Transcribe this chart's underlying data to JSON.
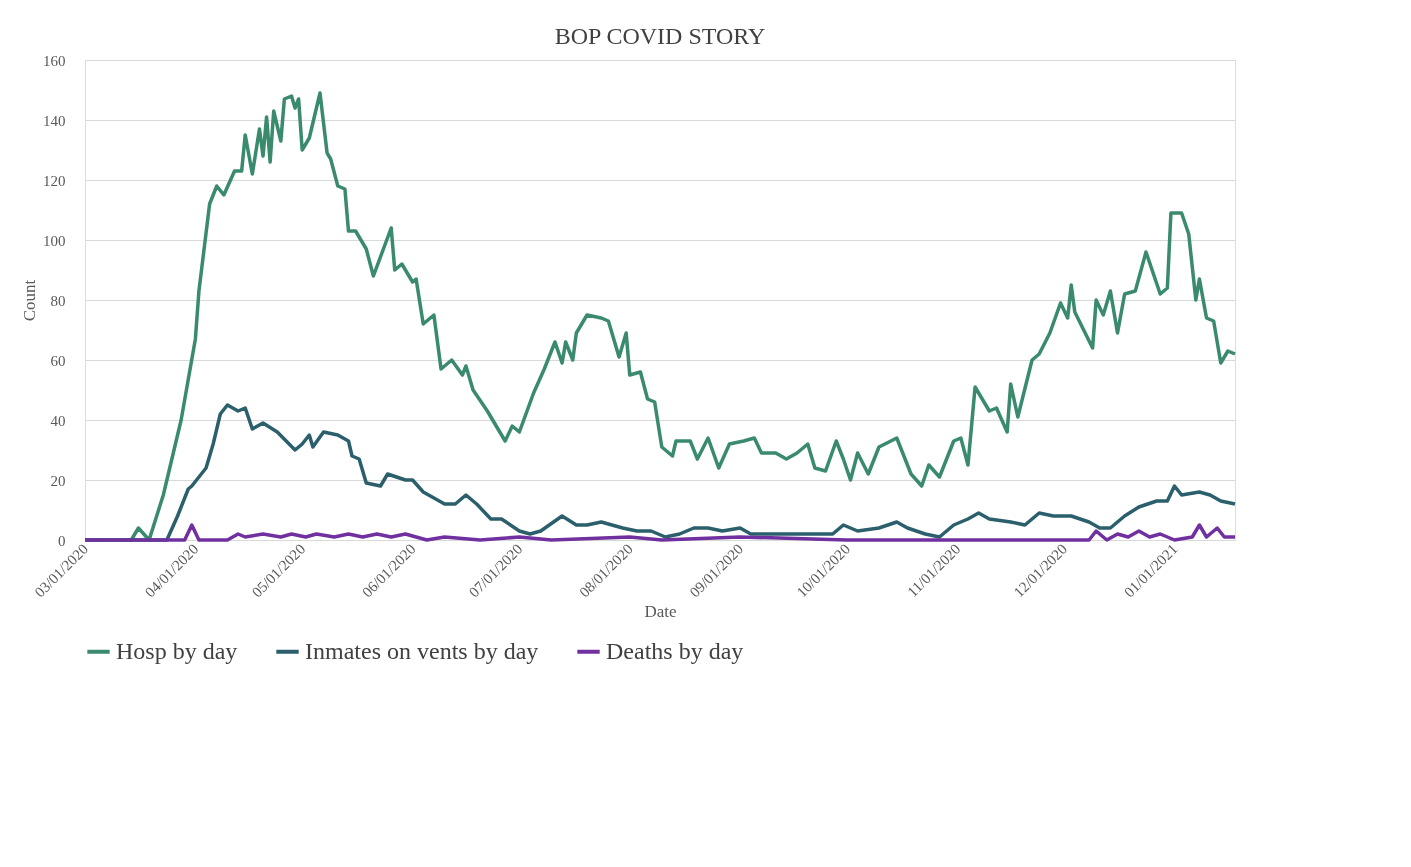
{
  "chart_data": {
    "type": "line",
    "title": "BOP COVID STORY",
    "xlabel": "Date",
    "ylabel": "Count",
    "xlim": [
      "2020-03-01",
      "2021-01-18"
    ],
    "xticks": [
      {
        "value": "2020-03-01",
        "label": "03/01/2020"
      },
      {
        "value": "2020-04-01",
        "label": "04/01/2020"
      },
      {
        "value": "2020-05-01",
        "label": "05/01/2020"
      },
      {
        "value": "2020-06-01",
        "label": "06/01/2020"
      },
      {
        "value": "2020-07-01",
        "label": "07/01/2020"
      },
      {
        "value": "2020-08-01",
        "label": "08/01/2020"
      },
      {
        "value": "2020-09-01",
        "label": "09/01/2020"
      },
      {
        "value": "2020-10-01",
        "label": "10/01/2020"
      },
      {
        "value": "2020-11-01",
        "label": "11/01/2020"
      },
      {
        "value": "2020-12-01",
        "label": "12/01/2020"
      },
      {
        "value": "2021-01-01",
        "label": "01/01/2021"
      }
    ],
    "ylim": [
      0,
      160
    ],
    "yticks": [
      0,
      20,
      40,
      60,
      80,
      100,
      120,
      140,
      160
    ],
    "grid": "y",
    "legend": "bottom",
    "marker": "none",
    "line_style": "solid",
    "series": [
      {
        "name": "Hosp by day",
        "color": "#3a8a6e",
        "x": [
          "2020-03-01",
          "2020-03-14",
          "2020-03-16",
          "2020-03-19",
          "2020-03-23",
          "2020-03-28",
          "2020-04-01",
          "2020-04-02",
          "2020-04-05",
          "2020-04-07",
          "2020-04-09",
          "2020-04-12",
          "2020-04-14",
          "2020-04-15",
          "2020-04-17",
          "2020-04-19",
          "2020-04-20",
          "2020-04-21",
          "2020-04-22",
          "2020-04-23",
          "2020-04-25",
          "2020-04-26",
          "2020-04-28",
          "2020-04-29",
          "2020-04-30",
          "2020-05-01",
          "2020-05-03",
          "2020-05-06",
          "2020-05-08",
          "2020-05-09",
          "2020-05-11",
          "2020-05-13",
          "2020-05-14",
          "2020-05-16",
          "2020-05-19",
          "2020-05-21",
          "2020-05-26",
          "2020-05-27",
          "2020-05-29",
          "2020-06-01",
          "2020-06-02",
          "2020-06-04",
          "2020-06-07",
          "2020-06-09",
          "2020-06-12",
          "2020-06-15",
          "2020-06-16",
          "2020-06-18",
          "2020-06-22",
          "2020-06-25",
          "2020-06-27",
          "2020-06-29",
          "2020-07-01",
          "2020-07-05",
          "2020-07-08",
          "2020-07-11",
          "2020-07-13",
          "2020-07-14",
          "2020-07-16",
          "2020-07-17",
          "2020-07-20",
          "2020-07-24",
          "2020-07-26",
          "2020-07-29",
          "2020-07-31",
          "2020-08-01",
          "2020-08-04",
          "2020-08-06",
          "2020-08-08",
          "2020-08-10",
          "2020-08-13",
          "2020-08-14",
          "2020-08-18",
          "2020-08-20",
          "2020-08-23",
          "2020-08-26",
          "2020-08-29",
          "2020-09-02",
          "2020-09-05",
          "2020-09-07",
          "2020-09-11",
          "2020-09-14",
          "2020-09-17",
          "2020-09-20",
          "2020-09-22",
          "2020-09-25",
          "2020-09-28",
          "2020-09-30",
          "2020-10-02",
          "2020-10-04",
          "2020-10-07",
          "2020-10-10",
          "2020-10-15",
          "2020-10-19",
          "2020-10-22",
          "2020-10-24",
          "2020-10-27",
          "2020-10-31",
          "2020-11-02",
          "2020-11-04",
          "2020-11-06",
          "2020-11-08",
          "2020-11-10",
          "2020-11-12",
          "2020-11-15",
          "2020-11-16",
          "2020-11-18",
          "2020-11-22",
          "2020-11-24",
          "2020-11-27",
          "2020-11-30",
          "2020-12-02",
          "2020-12-03",
          "2020-12-04",
          "2020-12-09",
          "2020-12-10",
          "2020-12-12",
          "2020-12-14",
          "2020-12-16",
          "2020-12-18",
          "2020-12-21",
          "2020-12-24",
          "2020-12-28",
          "2020-12-30",
          "2020-12-31",
          "2021-01-03",
          "2021-01-05",
          "2021-01-07",
          "2021-01-08",
          "2021-01-10",
          "2021-01-12",
          "2021-01-14",
          "2021-01-16",
          "2021-01-18"
        ],
        "values": [
          0,
          0,
          4,
          0,
          15,
          40,
          67,
          83,
          112,
          118,
          115,
          123,
          123,
          135,
          122,
          137,
          128,
          141,
          126,
          143,
          133,
          147,
          148,
          144,
          147,
          130,
          134,
          149,
          129,
          127,
          118,
          117,
          103,
          103,
          97,
          88,
          104,
          90,
          92,
          86,
          87,
          72,
          75,
          57,
          60,
          55,
          58,
          50,
          43,
          37,
          33,
          38,
          36,
          49,
          57,
          66,
          59,
          66,
          60,
          69,
          75,
          74,
          73,
          61,
          69,
          55,
          56,
          47,
          46,
          31,
          28,
          33,
          33,
          27,
          34,
          24,
          32,
          33,
          34,
          29,
          29,
          27,
          29,
          32,
          24,
          23,
          33,
          27,
          20,
          29,
          22,
          31,
          34,
          22,
          18,
          25,
          21,
          33,
          34,
          25,
          51,
          47,
          43,
          44,
          36,
          52,
          41,
          60,
          62,
          69,
          79,
          74,
          85,
          76,
          64,
          80,
          75,
          83,
          69,
          82,
          83,
          96,
          82,
          84,
          109,
          109,
          102,
          80,
          87,
          74,
          73,
          59,
          63,
          62
        ]
      },
      {
        "name": "Inmates on vents by day",
        "color": "#2b5f6c",
        "x": [
          "2020-03-01",
          "2020-03-24",
          "2020-03-27",
          "2020-03-30",
          "2020-03-31",
          "2020-04-04",
          "2020-04-06",
          "2020-04-08",
          "2020-04-10",
          "2020-04-13",
          "2020-04-15",
          "2020-04-17",
          "2020-04-20",
          "2020-04-24",
          "2020-04-29",
          "2020-05-01",
          "2020-05-03",
          "2020-05-04",
          "2020-05-07",
          "2020-05-11",
          "2020-05-14",
          "2020-05-15",
          "2020-05-17",
          "2020-05-19",
          "2020-05-23",
          "2020-05-25",
          "2020-05-30",
          "2020-06-01",
          "2020-06-04",
          "2020-06-07",
          "2020-06-10",
          "2020-06-13",
          "2020-06-16",
          "2020-06-19",
          "2020-06-23",
          "2020-06-26",
          "2020-07-01",
          "2020-07-04",
          "2020-07-07",
          "2020-07-13",
          "2020-07-17",
          "2020-07-20",
          "2020-07-24",
          "2020-07-30",
          "2020-08-03",
          "2020-08-07",
          "2020-08-11",
          "2020-08-15",
          "2020-08-19",
          "2020-08-23",
          "2020-08-27",
          "2020-09-01",
          "2020-09-04",
          "2020-09-10",
          "2020-09-19",
          "2020-09-27",
          "2020-09-30",
          "2020-10-04",
          "2020-10-10",
          "2020-10-15",
          "2020-10-18",
          "2020-10-23",
          "2020-10-27",
          "2020-10-31",
          "2020-11-04",
          "2020-11-07",
          "2020-11-10",
          "2020-11-16",
          "2020-11-20",
          "2020-11-24",
          "2020-11-28",
          "2020-12-03",
          "2020-12-08",
          "2020-12-11",
          "2020-12-14",
          "2020-12-18",
          "2020-12-22",
          "2020-12-27",
          "2020-12-30",
          "2021-01-01",
          "2021-01-03",
          "2021-01-08",
          "2021-01-11",
          "2021-01-14",
          "2021-01-18"
        ],
        "values": [
          0,
          0,
          8,
          17,
          18,
          24,
          32,
          42,
          45,
          43,
          44,
          37,
          39,
          36,
          30,
          32,
          35,
          31,
          36,
          35,
          33,
          28,
          27,
          19,
          18,
          22,
          20,
          20,
          16,
          14,
          12,
          12,
          15,
          12,
          7,
          7,
          3,
          2,
          3,
          8,
          5,
          5,
          6,
          4,
          3,
          3,
          1,
          2,
          4,
          4,
          3,
          4,
          2,
          2,
          2,
          2,
          5,
          3,
          4,
          6,
          4,
          2,
          1,
          5,
          7,
          9,
          7,
          6,
          5,
          9,
          8,
          8,
          6,
          4,
          4,
          8,
          11,
          13,
          13,
          18,
          15,
          16,
          15,
          13,
          12
        ]
      },
      {
        "name": "Deaths by day",
        "color": "#7030a0",
        "x": [
          "2020-03-01",
          "2020-03-29",
          "2020-03-31",
          "2020-04-02",
          "2020-04-10",
          "2020-04-13",
          "2020-04-15",
          "2020-04-20",
          "2020-04-25",
          "2020-04-28",
          "2020-05-02",
          "2020-05-05",
          "2020-05-10",
          "2020-05-14",
          "2020-05-18",
          "2020-05-22",
          "2020-05-26",
          "2020-05-30",
          "2020-06-05",
          "2020-06-10",
          "2020-06-20",
          "2020-07-01",
          "2020-07-10",
          "2020-08-01",
          "2020-08-10",
          "2020-09-01",
          "2020-10-01",
          "2020-11-01",
          "2020-11-20",
          "2020-12-08",
          "2020-12-10",
          "2020-12-13",
          "2020-12-16",
          "2020-12-19",
          "2020-12-22",
          "2020-12-25",
          "2020-12-28",
          "2021-01-01",
          "2021-01-06",
          "2021-01-08",
          "2021-01-10",
          "2021-01-13",
          "2021-01-15",
          "2021-01-18"
        ],
        "values": [
          0,
          0,
          5,
          0,
          0,
          2,
          1,
          2,
          1,
          2,
          1,
          2,
          1,
          2,
          1,
          2,
          1,
          2,
          0,
          1,
          0,
          1,
          0,
          1,
          0,
          1,
          0,
          0,
          0,
          0,
          3,
          0,
          2,
          1,
          3,
          1,
          2,
          0,
          1,
          5,
          1,
          4,
          1,
          1
        ]
      }
    ]
  }
}
